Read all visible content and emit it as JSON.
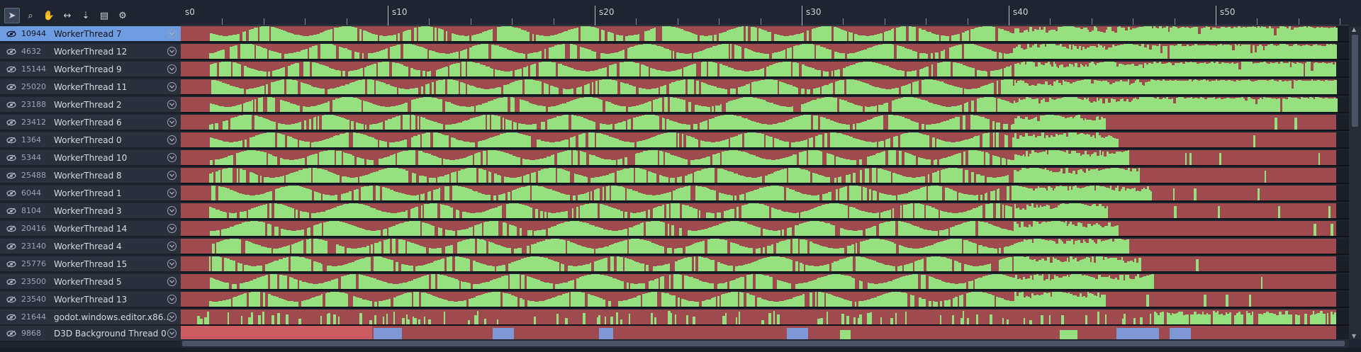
{
  "toolbar": {
    "tools": [
      {
        "name": "select-tool",
        "icon": "cursor-icon",
        "glyph": "➤",
        "active": true
      },
      {
        "name": "zoom-tool",
        "icon": "magnifier-icon",
        "glyph": "⌕",
        "active": false
      },
      {
        "name": "pan-tool",
        "icon": "hand-icon",
        "glyph": "✋",
        "active": false
      },
      {
        "name": "measure-tool",
        "icon": "horizontal-arrows-icon",
        "glyph": "↔",
        "active": false
      },
      {
        "name": "sort-tool",
        "icon": "sort-icon",
        "glyph": "⇣",
        "active": false
      },
      {
        "name": "report-tool",
        "icon": "document-icon",
        "glyph": "▤",
        "active": false
      },
      {
        "name": "settings-tool",
        "icon": "cog-icon",
        "glyph": "⚙",
        "active": false
      }
    ]
  },
  "ruler": {
    "labels": [
      "s0",
      "s10",
      "s20",
      "s30",
      "s40",
      "s50"
    ]
  },
  "threads": [
    {
      "id": "10944",
      "name": "WorkerThread 7",
      "selected": true
    },
    {
      "id": "4632",
      "name": "WorkerThread 12",
      "selected": false
    },
    {
      "id": "15144",
      "name": "WorkerThread 9",
      "selected": false
    },
    {
      "id": "25020",
      "name": "WorkerThread 11",
      "selected": false
    },
    {
      "id": "23188",
      "name": "WorkerThread 2",
      "selected": false
    },
    {
      "id": "23412",
      "name": "WorkerThread 6",
      "selected": false
    },
    {
      "id": "1364",
      "name": "WorkerThread 0",
      "selected": false
    },
    {
      "id": "5344",
      "name": "WorkerThread 10",
      "selected": false
    },
    {
      "id": "25488",
      "name": "WorkerThread 8",
      "selected": false
    },
    {
      "id": "6044",
      "name": "WorkerThread 1",
      "selected": false
    },
    {
      "id": "8104",
      "name": "WorkerThread 3",
      "selected": false
    },
    {
      "id": "20416",
      "name": "WorkerThread 14",
      "selected": false
    },
    {
      "id": "23140",
      "name": "WorkerThread 4",
      "selected": false
    },
    {
      "id": "25776",
      "name": "WorkerThread 15",
      "selected": false
    },
    {
      "id": "23500",
      "name": "WorkerThread 5",
      "selected": false
    },
    {
      "id": "23540",
      "name": "WorkerThread 13",
      "selected": false
    },
    {
      "id": "21644",
      "name": "godot.windows.editor.x86...",
      "selected": false
    },
    {
      "id": "9868",
      "name": "D3D Background Thread 0",
      "selected": false
    }
  ],
  "colors": {
    "busy": "#96e07f",
    "idle": "#9e4a4f",
    "idle_bright": "#cc5c63",
    "other": "#7e97d6",
    "selected_row": "#6f9be0"
  },
  "icons": {
    "visibility": "eye-icon",
    "expand": "chevron-down-icon"
  }
}
